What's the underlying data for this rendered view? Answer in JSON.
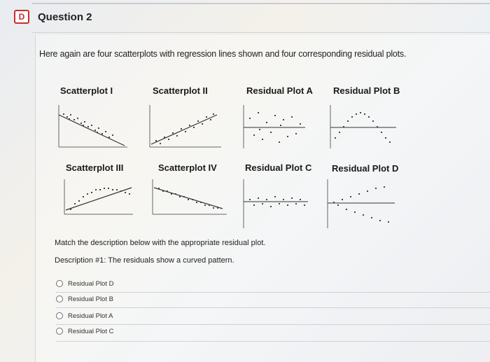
{
  "question": {
    "flag_icon": "D",
    "title": "Question 2",
    "intro": "Here again are four scatterplots with regression lines shown and four corresponding residual plots.",
    "plots": [
      {
        "label": "Scatterplot I"
      },
      {
        "label": "Scatterplot II"
      },
      {
        "label": "Residual Plot A"
      },
      {
        "label": "Residual Plot B"
      },
      {
        "label": "Scatterplot III"
      },
      {
        "label": "Scatterplot IV"
      },
      {
        "label": "Residual Plot C"
      },
      {
        "label": "Residual Plot D"
      }
    ],
    "match_text": "Match the description below with the appropriate residual plot.",
    "description": "Description #1: The residuals show a curved pattern.",
    "options": [
      {
        "label": "Residual Plot D"
      },
      {
        "label": "Residual Plot B"
      },
      {
        "label": "Residual Plot A"
      },
      {
        "label": "Residual Plot C"
      }
    ]
  }
}
